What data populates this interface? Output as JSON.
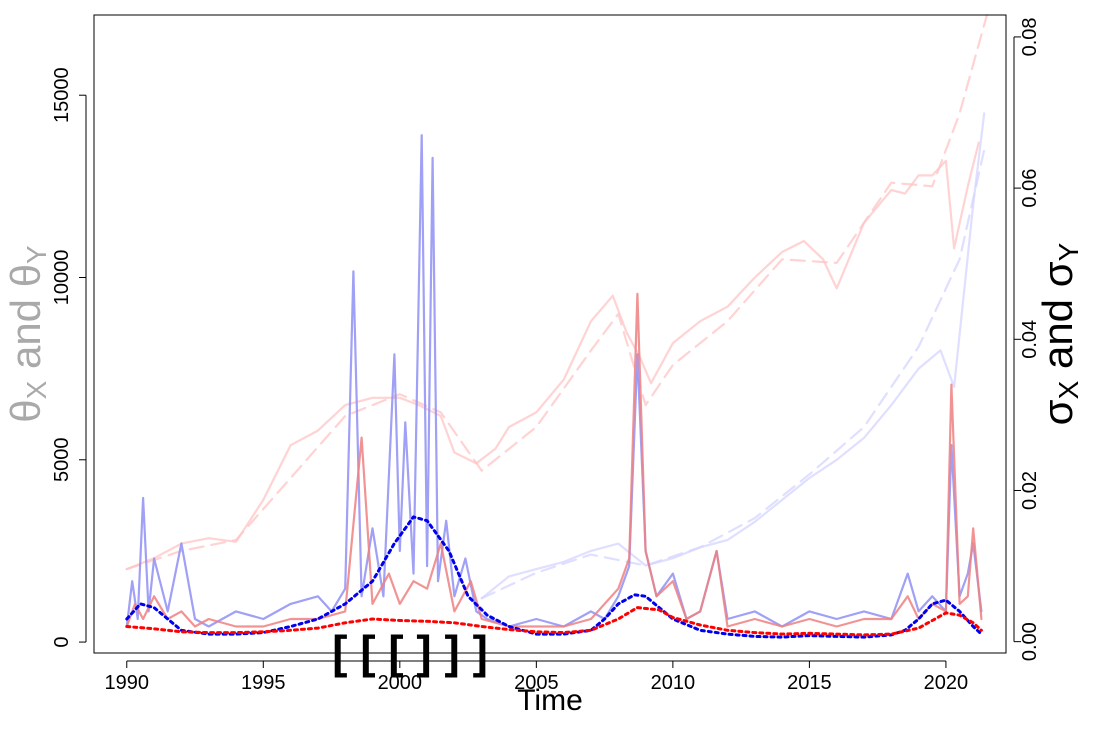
{
  "chart_data": {
    "type": "line",
    "x_axis": {
      "label": "Time",
      "range": [
        1988.8,
        2022.2
      ],
      "ticks": [
        1990,
        1995,
        2000,
        2005,
        2010,
        2015,
        2020
      ],
      "tick_labels": [
        "1990",
        "1995",
        "2000",
        "2005",
        "2010",
        "2015",
        "2020"
      ]
    },
    "y_axis_left": {
      "label_parts": [
        "θ",
        "X",
        " and θ",
        "Y"
      ],
      "label_color": "#a9a9a9",
      "range": [
        -300,
        17200
      ],
      "ticks": [
        0,
        5000,
        10000,
        15000
      ],
      "tick_labels": [
        "0",
        "5000",
        "10000",
        "15000"
      ]
    },
    "y_axis_right": {
      "label_parts": [
        "σ",
        "X",
        " and σ",
        "Y"
      ],
      "range": [
        -0.0015,
        0.0829
      ],
      "ticks": [
        0,
        0.02,
        0.04,
        0.06,
        0.08
      ],
      "tick_labels": [
        "0.00",
        "0.02",
        "0.04",
        "0.06",
        "0.08"
      ]
    },
    "annotation": {
      "text": "[ [ [  ] ] ]",
      "near_x": 2000,
      "description": "nested brackets marking the period around 2000"
    },
    "colors": {
      "red_index": "#ffc4c4",
      "blue_index": "#d4d4ff",
      "red_vol": "#f08080",
      "blue_vol": "#8f8ff5",
      "red_smooth": "#ff0000",
      "blue_smooth": "#0000ee"
    },
    "series": [
      {
        "axis": "left",
        "style": "faint-solid",
        "color": "#ffc4c4",
        "x": [
          1990,
          1991,
          1992,
          1993,
          1994,
          1995,
          1996,
          1997,
          1998,
          1999,
          2000,
          2000.7,
          2001.5,
          2002,
          2002.8,
          2003.5,
          2004,
          2005,
          2006,
          2007,
          2007.8,
          2008.3,
          2008.8,
          2009.2,
          2010,
          2011,
          2012,
          2013,
          2014,
          2014.8,
          2015.5,
          2016,
          2017,
          2018,
          2018.5,
          2019,
          2019.5,
          2020,
          2020.3,
          2020.8,
          2021.2
        ],
        "y": [
          2000,
          2300,
          2700,
          2850,
          2750,
          3900,
          5400,
          5800,
          6500,
          6700,
          6700,
          6500,
          6200,
          5200,
          4900,
          5300,
          5900,
          6300,
          7200,
          8800,
          9500,
          8500,
          7800,
          7100,
          8200,
          8800,
          9200,
          10000,
          10700,
          11000,
          10500,
          9700,
          11500,
          12400,
          12300,
          12800,
          12800,
          13200,
          10800,
          12500,
          13700
        ]
      },
      {
        "axis": "left",
        "style": "faint-dashed",
        "color": "#ffc4c4",
        "x": [
          1990,
          1992,
          1994,
          1996,
          1998,
          2000,
          2001.5,
          2003,
          2005,
          2007,
          2008,
          2009,
          2010,
          2012,
          2014,
          2016,
          2018,
          2019.5,
          2020.5,
          2021.5
        ],
        "y": [
          2000,
          2500,
          2800,
          4500,
          6200,
          6800,
          6300,
          4700,
          5900,
          8000,
          9000,
          6500,
          7600,
          8800,
          10500,
          10400,
          12600,
          12500,
          14500,
          17200
        ]
      },
      {
        "axis": "left",
        "style": "faint-solid",
        "color": "#d4d4ff",
        "x": [
          2003,
          2004,
          2005,
          2006,
          2007,
          2008,
          2009,
          2010,
          2011,
          2012,
          2013,
          2014,
          2015,
          2016,
          2017,
          2018,
          2019,
          2019.8,
          2020.3,
          2021,
          2021.4
        ],
        "y": [
          1200,
          1800,
          2000,
          2200,
          2500,
          2700,
          2100,
          2300,
          2600,
          2800,
          3300,
          3900,
          4500,
          5000,
          5600,
          6500,
          7500,
          8000,
          7000,
          12000,
          14500
        ]
      },
      {
        "axis": "left",
        "style": "faint-dashed",
        "color": "#d4d4ff",
        "x": [
          2003,
          2005,
          2007,
          2009,
          2011,
          2013,
          2015,
          2017,
          2019,
          2020.5,
          2021.4
        ],
        "y": [
          1200,
          1900,
          2400,
          2100,
          2600,
          3400,
          4600,
          5900,
          8100,
          10500,
          13500
        ]
      },
      {
        "axis": "right",
        "style": "volatility",
        "color": "#8f8ff5",
        "x": [
          1990,
          1990.2,
          1990.4,
          1990.6,
          1990.8,
          1991,
          1991.5,
          1992,
          1992.5,
          1993,
          1994,
          1995,
          1996,
          1997,
          1997.5,
          1998,
          1998.3,
          1998.6,
          1999,
          1999.4,
          1999.8,
          2000,
          2000.2,
          2000.5,
          2000.8,
          2001,
          2001.2,
          2001.4,
          2001.7,
          2002,
          2002.4,
          2002.8,
          2003.2,
          2004,
          2005,
          2006,
          2007,
          2007.5,
          2008,
          2008.4,
          2008.7,
          2009,
          2009.4,
          2010,
          2010.5,
          2011,
          2011.6,
          2012,
          2013,
          2014,
          2015,
          2016,
          2017,
          2018,
          2018.6,
          2019,
          2019.5,
          2020,
          2020.2,
          2020.5,
          2020.8,
          2021,
          2021.3
        ],
        "y": [
          0.002,
          0.008,
          0.003,
          0.019,
          0.004,
          0.011,
          0.004,
          0.013,
          0.003,
          0.002,
          0.004,
          0.003,
          0.005,
          0.006,
          0.004,
          0.007,
          0.049,
          0.006,
          0.015,
          0.006,
          0.038,
          0.012,
          0.029,
          0.009,
          0.067,
          0.01,
          0.064,
          0.008,
          0.016,
          0.006,
          0.011,
          0.004,
          0.003,
          0.002,
          0.003,
          0.002,
          0.004,
          0.003,
          0.006,
          0.01,
          0.038,
          0.012,
          0.006,
          0.009,
          0.003,
          0.004,
          0.012,
          0.003,
          0.004,
          0.002,
          0.004,
          0.003,
          0.004,
          0.003,
          0.009,
          0.004,
          0.006,
          0.004,
          0.026,
          0.006,
          0.009,
          0.013,
          0.004
        ]
      },
      {
        "axis": "right",
        "style": "volatility",
        "color": "#f08080",
        "x": [
          1990,
          1990.3,
          1990.6,
          1991,
          1991.5,
          1992,
          1992.5,
          1993,
          1994,
          1995,
          1996,
          1997,
          1998,
          1998.6,
          1999,
          1999.6,
          2000,
          2000.5,
          2001,
          2001.5,
          2002,
          2002.6,
          2003,
          2004,
          2005,
          2006,
          2007,
          2008,
          2008.4,
          2008.7,
          2009,
          2009.4,
          2010,
          2010.5,
          2011,
          2011.6,
          2012,
          2013,
          2014,
          2015,
          2016,
          2017,
          2018,
          2018.6,
          2019,
          2019.5,
          2020,
          2020.2,
          2020.5,
          2020.8,
          2021,
          2021.3
        ],
        "y": [
          0.002,
          0.005,
          0.003,
          0.006,
          0.003,
          0.004,
          0.002,
          0.003,
          0.002,
          0.002,
          0.003,
          0.003,
          0.004,
          0.027,
          0.005,
          0.009,
          0.005,
          0.008,
          0.007,
          0.013,
          0.004,
          0.008,
          0.003,
          0.002,
          0.002,
          0.002,
          0.003,
          0.007,
          0.011,
          0.046,
          0.012,
          0.006,
          0.008,
          0.003,
          0.004,
          0.012,
          0.002,
          0.003,
          0.002,
          0.003,
          0.002,
          0.003,
          0.003,
          0.006,
          0.003,
          0.005,
          0.004,
          0.034,
          0.005,
          0.006,
          0.015,
          0.003
        ]
      },
      {
        "axis": "right",
        "style": "smooth-dotted",
        "color": "#0000ee",
        "x": [
          1990,
          1990.5,
          1991,
          1991.5,
          1992,
          1993,
          1994,
          1995,
          1996,
          1997,
          1998,
          1999,
          1999.8,
          2000.5,
          2001,
          2001.8,
          2002.5,
          2003.2,
          2004,
          2005,
          2006,
          2007,
          2007.5,
          2008,
          2008.6,
          2009,
          2009.5,
          2010,
          2011,
          2012,
          2013,
          2014,
          2015,
          2016,
          2017,
          2018,
          2018.5,
          2019,
          2019.5,
          2020,
          2020.5,
          2021,
          2021.3
        ],
        "y": [
          0.003,
          0.005,
          0.0045,
          0.003,
          0.0015,
          0.001,
          0.001,
          0.0012,
          0.002,
          0.003,
          0.005,
          0.008,
          0.013,
          0.0165,
          0.016,
          0.012,
          0.006,
          0.0035,
          0.002,
          0.001,
          0.001,
          0.0015,
          0.003,
          0.005,
          0.0062,
          0.006,
          0.0045,
          0.003,
          0.0015,
          0.001,
          0.0007,
          0.0006,
          0.0008,
          0.0007,
          0.0006,
          0.0009,
          0.0015,
          0.003,
          0.005,
          0.0055,
          0.004,
          0.002,
          0.001
        ]
      },
      {
        "axis": "right",
        "style": "smooth-dotted",
        "color": "#ff0000",
        "x": [
          1990,
          1991,
          1992,
          1993,
          1994,
          1995,
          1996,
          1997,
          1998,
          1999,
          2000,
          2001,
          2002,
          2003,
          2004,
          2005,
          2006,
          2007,
          2008,
          2008.7,
          2009.5,
          2010,
          2011,
          2012,
          2013,
          2014,
          2015,
          2016,
          2017,
          2018,
          2019,
          2019.5,
          2020,
          2020.5,
          2021,
          2021.3
        ],
        "y": [
          0.002,
          0.0017,
          0.0013,
          0.0012,
          0.0012,
          0.0013,
          0.0015,
          0.0018,
          0.0025,
          0.003,
          0.0028,
          0.0027,
          0.0025,
          0.002,
          0.0016,
          0.0013,
          0.0012,
          0.0015,
          0.003,
          0.0045,
          0.0042,
          0.0032,
          0.0022,
          0.0015,
          0.0012,
          0.001,
          0.0011,
          0.001,
          0.0009,
          0.001,
          0.0018,
          0.0028,
          0.0038,
          0.0035,
          0.0025,
          0.0015
        ]
      }
    ]
  }
}
